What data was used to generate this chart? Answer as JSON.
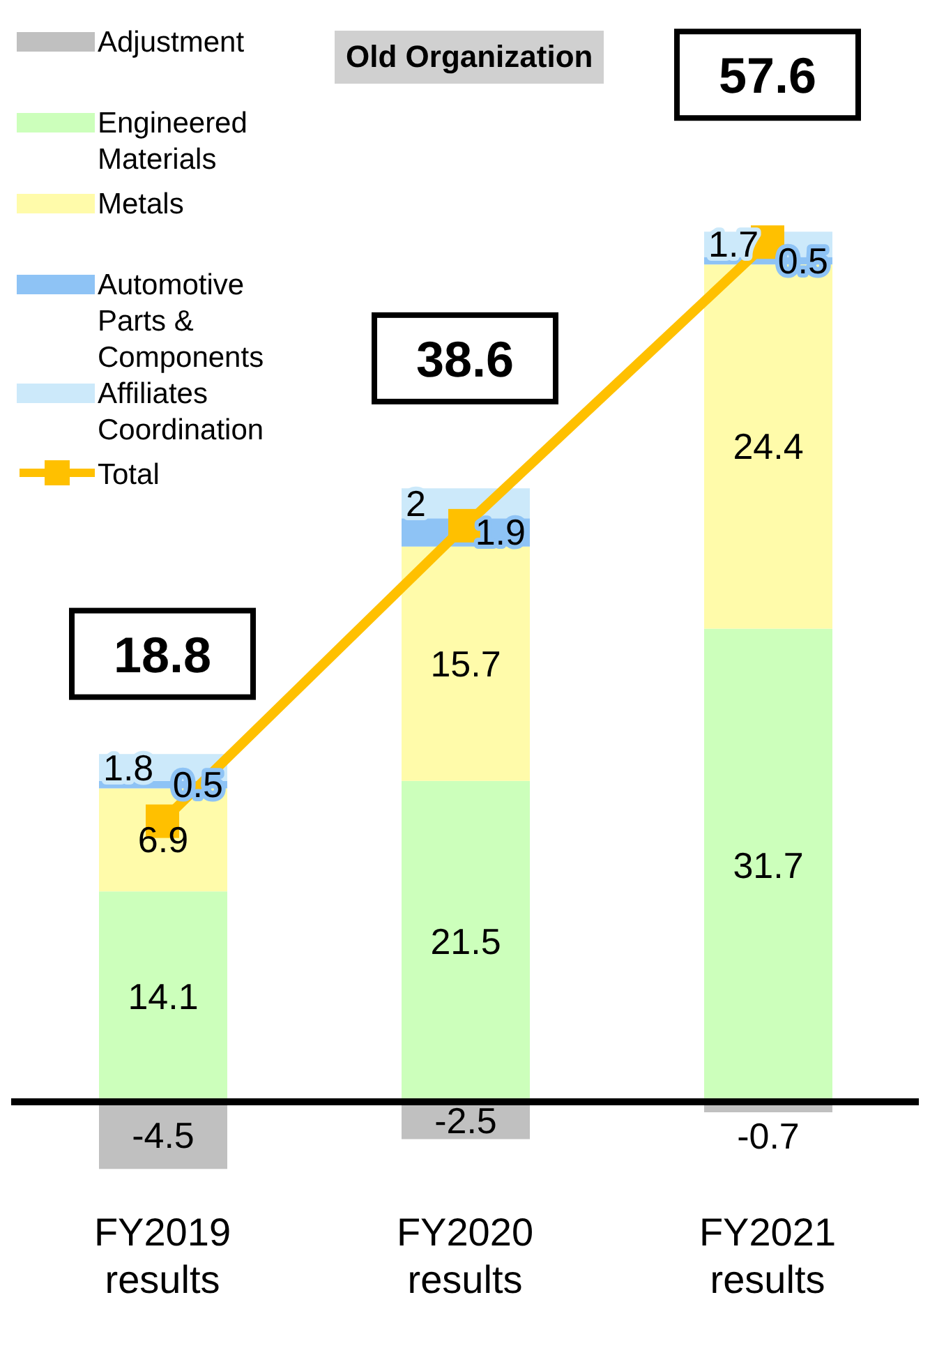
{
  "chart_data": {
    "type": "bar",
    "stacked": true,
    "categories": [
      "FY2019 results",
      "FY2020 results",
      "FY2021 results"
    ],
    "series": [
      {
        "name": "Adjustment",
        "color": "#c0c0c0",
        "values": [
          -4.5,
          -2.5,
          -0.7
        ]
      },
      {
        "name": "Engineered Materials",
        "color": "#ccffbb",
        "values": [
          14.1,
          21.5,
          31.7
        ]
      },
      {
        "name": "Metals",
        "color": "#fffbaa",
        "values": [
          6.9,
          15.7,
          24.4
        ]
      },
      {
        "name": "Automotive Parts & Components",
        "color": "#8ec3f5",
        "values": [
          0.5,
          1.9,
          0.5
        ]
      },
      {
        "name": "Affiliates Coordination",
        "color": "#cce9fa",
        "values": [
          1.8,
          2,
          1.7
        ]
      },
      {
        "name": "Total",
        "type": "line",
        "color": "#ffc000",
        "marker": "square",
        "values": [
          18.8,
          38.6,
          57.6
        ]
      }
    ],
    "data_labels": true,
    "legend": "top left",
    "tick_labels": "x",
    "annotations": [
      "Old Organization"
    ]
  }
}
